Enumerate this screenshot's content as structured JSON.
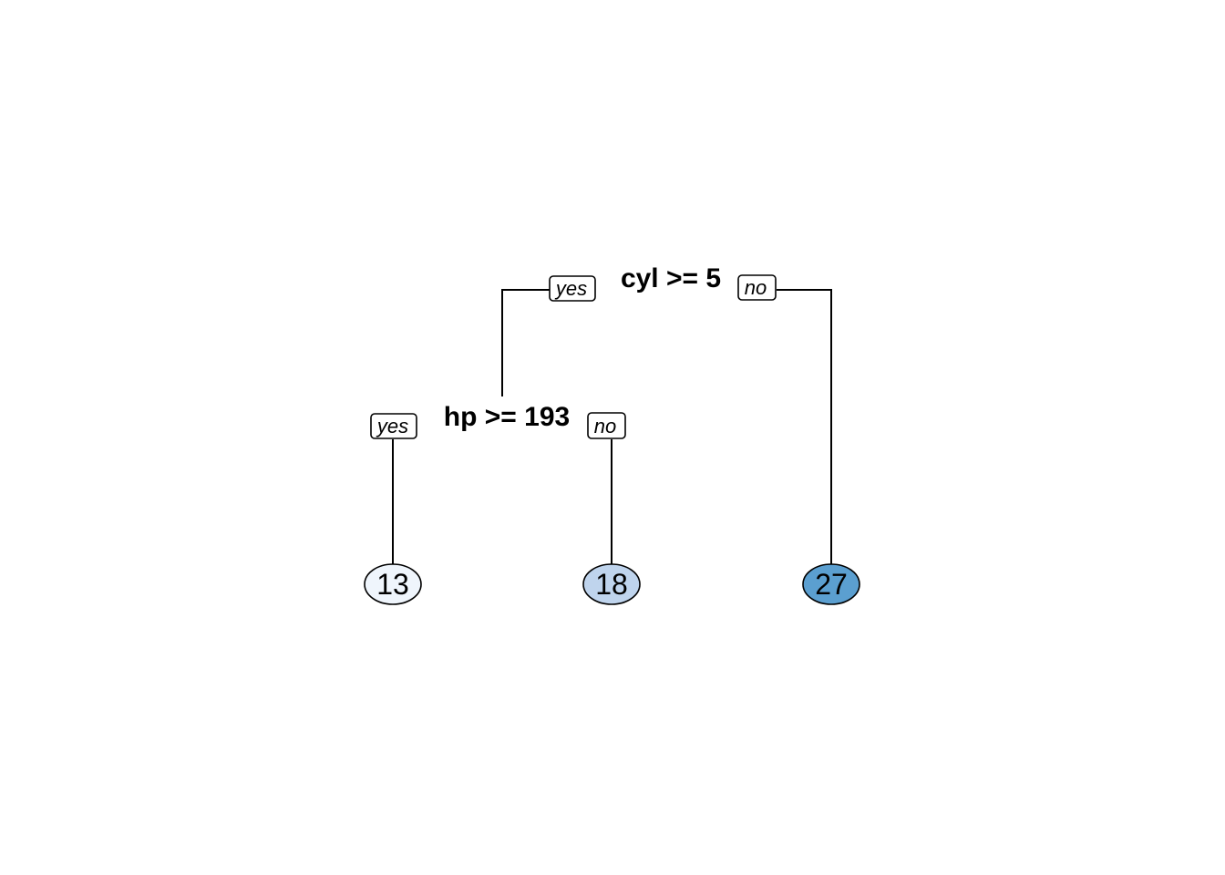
{
  "tree": {
    "root_split": {
      "label": "cyl >= 5",
      "yes_label": "yes",
      "no_label": "no"
    },
    "child_split": {
      "label": "hp >= 193",
      "yes_label": "yes",
      "no_label": "no"
    },
    "leaves": [
      {
        "value": "13",
        "fill": "#eff5fc"
      },
      {
        "value": "18",
        "fill": "#bfd4ed"
      },
      {
        "value": "27",
        "fill": "#5b9fd0"
      }
    ]
  }
}
